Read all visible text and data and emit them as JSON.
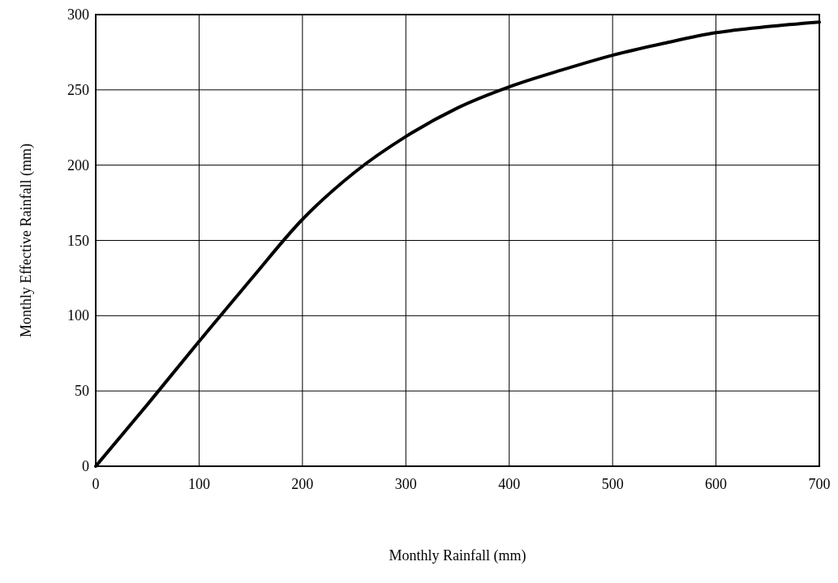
{
  "chart_data": {
    "type": "line",
    "xlabel": "Monthly Rainfall (mm)",
    "ylabel": "Monthly Effective Rainfall (mm)",
    "series": [
      {
        "color": "#000000",
        "x": [
          0,
          50,
          100,
          150,
          200,
          250,
          300,
          350,
          400,
          450,
          500,
          550,
          600,
          650,
          700
        ],
        "values": [
          0,
          41,
          83,
          124,
          164,
          195,
          219,
          238,
          252,
          263,
          273,
          281,
          288,
          292,
          295
        ]
      }
    ],
    "xlim": [
      0,
      700
    ],
    "xticks": [
      0,
      100,
      200,
      300,
      400,
      500,
      600,
      700
    ],
    "ylim": [
      0,
      300
    ],
    "yticks": [
      0,
      50,
      100,
      150,
      200,
      250,
      300
    ],
    "grid": true,
    "marker": "none",
    "line_style": "solid"
  }
}
